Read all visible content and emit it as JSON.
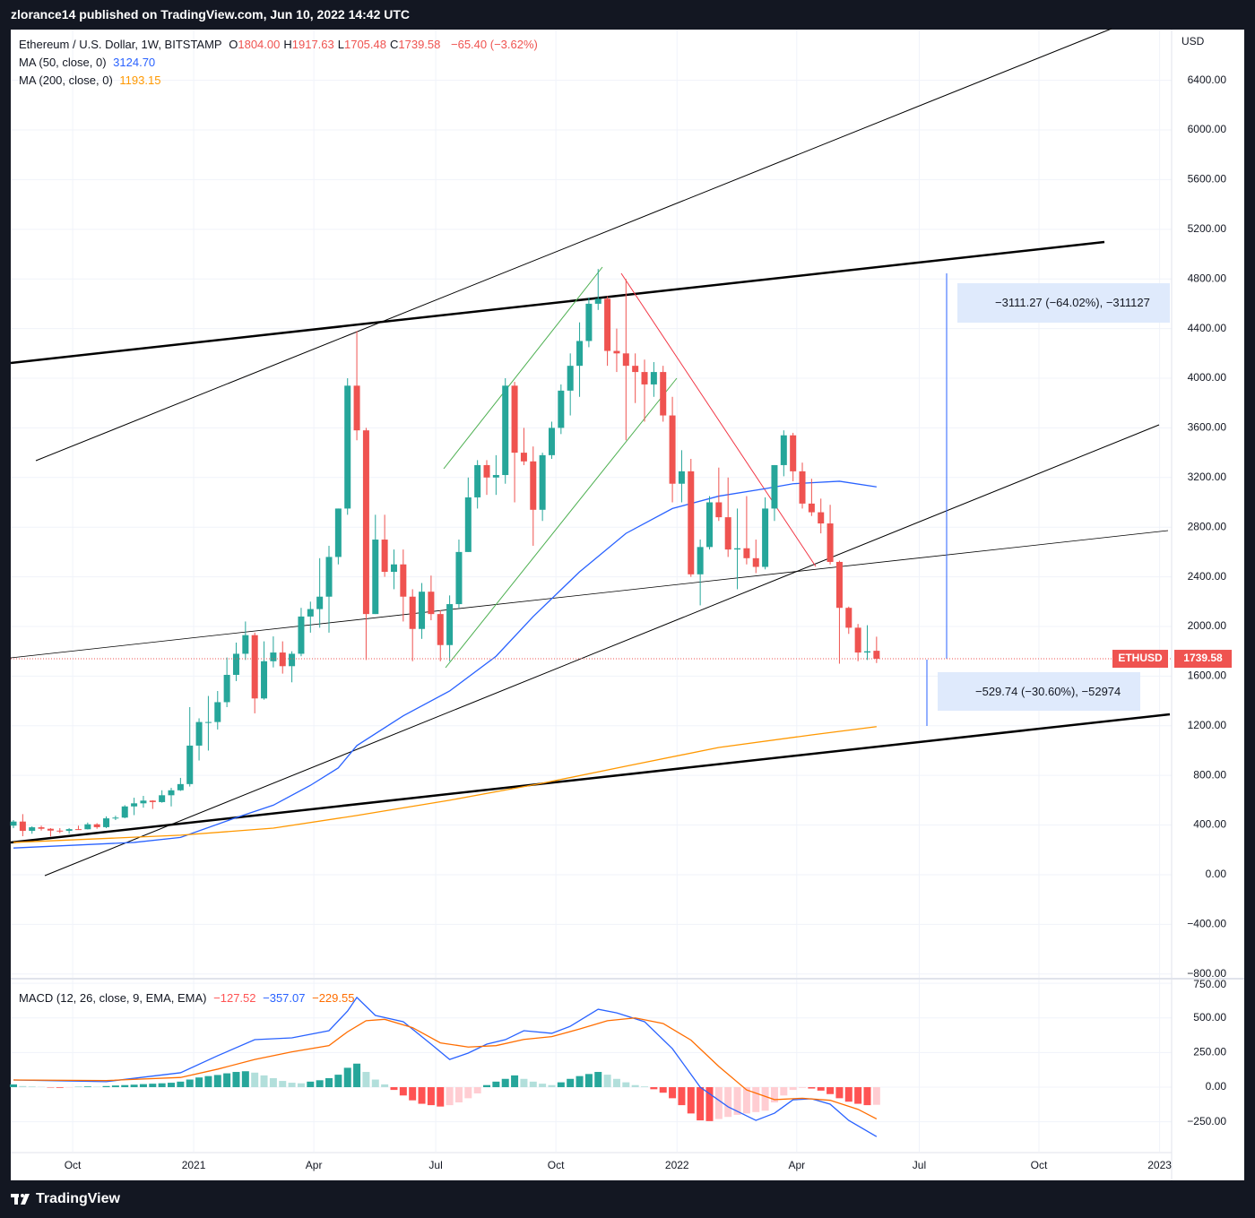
{
  "header": {
    "publisher": "zlorance14 published on TradingView.com, Jun 10, 2022 14:42 UTC"
  },
  "footer": {
    "brand": "TradingView"
  },
  "chart_data": [
    {
      "type": "candlestick",
      "legend": {
        "symbol": "Ethereum / U.S. Dollar, 1W, BITSTAMP",
        "ohlc": [
          {
            "label": "O",
            "value": "1804.00"
          },
          {
            "label": "H",
            "value": "1917.63"
          },
          {
            "label": "L",
            "value": "1705.48"
          },
          {
            "label": "C",
            "value": "1739.58"
          }
        ],
        "change": "−65.40 (−3.62%)"
      },
      "currency": "USD",
      "symbol_tag": "ETHUSD",
      "last_price_label": "1739.58",
      "up_color": "#26a69a",
      "down_color": "#ef5350",
      "categories": [
        null,
        null,
        null,
        null,
        null,
        null,
        null,
        null,
        null,
        null,
        null,
        null,
        null,
        null,
        null,
        null,
        null,
        null,
        null,
        null,
        null,
        null,
        null,
        null,
        null,
        null,
        null,
        null,
        null,
        null,
        null,
        null,
        null,
        null,
        null,
        null,
        null,
        null,
        null,
        null,
        null,
        null,
        null,
        null,
        null,
        null,
        null,
        null,
        null,
        null,
        null,
        null,
        null,
        null,
        null,
        null,
        null,
        null,
        null,
        null,
        null,
        null,
        null,
        null,
        null,
        null,
        null,
        null,
        null,
        null,
        null,
        null,
        null,
        null,
        null,
        null,
        null,
        null,
        null,
        null,
        null,
        null,
        null,
        null,
        null,
        null,
        null,
        null,
        null,
        null,
        null,
        null,
        null,
        null
      ],
      "open": [
        395,
        428,
        353,
        382,
        370,
        355,
        353,
        367,
        366,
        406,
        383,
        454,
        460,
        550,
        575,
        597,
        585,
        640,
        680,
        730,
        1040,
        1230,
        1230,
        1390,
        1610,
        1780,
        1930,
        1420,
        1720,
        1790,
        1680,
        1780,
        2080,
        2140,
        2240,
        2560,
        2950,
        3940,
        3580,
        2100,
        2700,
        2440,
        2500,
        2240,
        1980,
        2280,
        2100,
        1850,
        2180,
        2600,
        3040,
        3300,
        3200,
        3220,
        3940,
        3400,
        3330,
        2940,
        3380,
        3600,
        3900,
        4100,
        4300,
        4600,
        4640,
        4220,
        4200,
        4100,
        4050,
        3950,
        4050,
        3700,
        3150,
        3250,
        2420,
        2640,
        3000,
        2880,
        2620,
        2630,
        2550,
        2480,
        2950,
        3300,
        3540,
        3250,
        2990,
        2920,
        2830,
        2520,
        2150,
        1990,
        1790,
        1804
      ],
      "high": [
        440,
        488,
        390,
        395,
        375,
        375,
        375,
        395,
        420,
        415,
        470,
        475,
        560,
        620,
        635,
        600,
        680,
        700,
        780,
        1350,
        1260,
        1440,
        1480,
        1750,
        1870,
        2040,
        1950,
        1880,
        1920,
        1880,
        1800,
        2150,
        2200,
        2550,
        2650,
        2950,
        4000,
        4380,
        3600,
        2900,
        2900,
        2620,
        2620,
        2300,
        2350,
        2410,
        2130,
        2250,
        2700,
        3200,
        3340,
        3340,
        3380,
        4000,
        3970,
        3600,
        3450,
        3400,
        3650,
        3950,
        4200,
        4450,
        4650,
        4880,
        4660,
        4400,
        4800,
        4200,
        4150,
        4130,
        4100,
        3850,
        3420,
        3350,
        2700,
        3050,
        3280,
        3200,
        2950,
        3050,
        2700,
        3040,
        3300,
        3580,
        3560,
        3320,
        3190,
        3030,
        2980,
        2530,
        2160,
        2020,
        2010,
        1917.63
      ],
      "low": [
        375,
        310,
        330,
        355,
        308,
        335,
        330,
        362,
        364,
        370,
        375,
        440,
        455,
        480,
        540,
        530,
        580,
        550,
        675,
        710,
        920,
        1000,
        1170,
        1350,
        1560,
        1730,
        1300,
        1410,
        1670,
        1620,
        1550,
        1760,
        1950,
        1990,
        1950,
        2500,
        2900,
        3500,
        1730,
        2100,
        2400,
        2300,
        2040,
        1720,
        1900,
        2050,
        1720,
        1720,
        2150,
        2600,
        2950,
        3060,
        3060,
        3150,
        3000,
        3300,
        2650,
        2850,
        3350,
        3550,
        3700,
        3850,
        4250,
        4550,
        4100,
        4050,
        3500,
        3800,
        3650,
        3850,
        3650,
        3000,
        3000,
        2400,
        2170,
        2620,
        2850,
        2560,
        2300,
        2500,
        2430,
        2460,
        2850,
        3210,
        3170,
        2950,
        2890,
        2750,
        2500,
        1700,
        1940,
        1720,
        1730,
        1705.48
      ],
      "close": [
        428,
        353,
        382,
        370,
        355,
        353,
        367,
        366,
        406,
        383,
        454,
        460,
        550,
        575,
        597,
        585,
        640,
        680,
        730,
        1040,
        1230,
        1230,
        1390,
        1610,
        1780,
        1930,
        1420,
        1720,
        1790,
        1680,
        1780,
        2080,
        2140,
        2240,
        2560,
        2950,
        3940,
        3580,
        2100,
        2700,
        2440,
        2500,
        2240,
        1980,
        2280,
        2100,
        1850,
        2180,
        2600,
        3040,
        3300,
        3200,
        3220,
        3940,
        3400,
        3330,
        2940,
        3380,
        3600,
        3900,
        4100,
        4300,
        4600,
        4640,
        4220,
        4200,
        4100,
        4050,
        3950,
        4050,
        3700,
        3150,
        3250,
        2420,
        2640,
        3000,
        2880,
        2620,
        2630,
        2550,
        2480,
        2950,
        3300,
        3540,
        3250,
        2990,
        2920,
        2830,
        2520,
        2150,
        1990,
        1790,
        1800,
        1739.58
      ],
      "overlays": [
        {
          "name": "MA (50, close, 0)",
          "value_label": "3124.70",
          "color": "#2962ff",
          "x": [
            0,
            13,
            18,
            24,
            28,
            32,
            35,
            37,
            42,
            47,
            52,
            56,
            61,
            66,
            71,
            76,
            81,
            84,
            89,
            93
          ],
          "values": [
            215,
            260,
            300,
            460,
            560,
            720,
            860,
            1040,
            1280,
            1480,
            1760,
            2080,
            2440,
            2750,
            2950,
            3050,
            3110,
            3150,
            3170,
            3124.7
          ]
        },
        {
          "name": "MA (200, close, 0)",
          "value_label": "1193.15",
          "color": "#ff9800",
          "x": [
            0,
            18,
            28,
            37,
            47,
            57,
            66,
            76,
            86,
            93
          ],
          "values": [
            260,
            318,
            375,
            477,
            600,
            737,
            874,
            1025,
            1126,
            1193.15
          ]
        }
      ],
      "measurements": [
        "−3111.27 (−64.02%), −311127",
        "−529.74 (−30.60%), −52974"
      ],
      "xlim": [
        -0.29,
        124.6
      ],
      "xticks": [
        {
          "value": 6.38,
          "label": "Oct"
        },
        {
          "value": 19.42,
          "label": "2021"
        },
        {
          "value": 32.37,
          "label": "Apr"
        },
        {
          "value": 45.5,
          "label": "Jul"
        },
        {
          "value": 58.45,
          "label": "Oct"
        },
        {
          "value": 71.5,
          "label": "2022"
        },
        {
          "value": 84.4,
          "label": "Apr"
        },
        {
          "value": 97.6,
          "label": "Jul"
        },
        {
          "value": 110.5,
          "label": "Oct"
        },
        {
          "value": 123.5,
          "label": "2023"
        }
      ],
      "ylim": [
        -838,
        6809
      ],
      "yticks": [
        {
          "value": 6400,
          "label": "6400.00"
        },
        {
          "value": 6000,
          "label": "6000.00"
        },
        {
          "value": 5600,
          "label": "5600.00"
        },
        {
          "value": 5200,
          "label": "5200.00"
        },
        {
          "value": 4800,
          "label": "4800.00"
        },
        {
          "value": 4400,
          "label": "4400.00"
        },
        {
          "value": 4000,
          "label": "4000.00"
        },
        {
          "value": 3600,
          "label": "3600.00"
        },
        {
          "value": 3200,
          "label": "3200.00"
        },
        {
          "value": 2800,
          "label": "2800.00"
        },
        {
          "value": 2400,
          "label": "2400.00"
        },
        {
          "value": 2000,
          "label": "2000.00"
        },
        {
          "value": 1600,
          "label": "1600.00"
        },
        {
          "value": 1200,
          "label": "1200.00"
        },
        {
          "value": 800,
          "label": "800.00"
        },
        {
          "value": 400,
          "label": "400.00"
        },
        {
          "value": 0,
          "label": "0.00"
        },
        {
          "value": -400,
          "label": "−400.00"
        },
        {
          "value": -800,
          "label": "−800.00"
        }
      ],
      "grid": true
    },
    {
      "type": "macd",
      "legend": {
        "title": "MACD (12, 26, close, 9, EMA, EMA)"
      },
      "histogram": {
        "value_label": "−127.52",
        "colors": [
          "#26a69a",
          "#b2dfdb",
          "#ffcdd2",
          "#ff5252"
        ],
        "values": [
          20,
          8,
          5,
          2,
          -3,
          -5,
          -3,
          2,
          5,
          3,
          8,
          12,
          15,
          18,
          22,
          25,
          28,
          32,
          40,
          55,
          70,
          80,
          88,
          100,
          110,
          115,
          105,
          85,
          65,
          45,
          32,
          28,
          40,
          50,
          65,
          90,
          140,
          170,
          110,
          55,
          20,
          -20,
          -60,
          -95,
          -120,
          -130,
          -140,
          -130,
          -110,
          -80,
          -45,
          15,
          40,
          60,
          85,
          60,
          40,
          25,
          15,
          35,
          60,
          80,
          95,
          110,
          90,
          60,
          35,
          15,
          5,
          -15,
          -40,
          -80,
          -130,
          -190,
          -240,
          -245,
          -230,
          -215,
          -200,
          -190,
          -180,
          -170,
          -110,
          -60,
          -20,
          -5,
          -10,
          -25,
          -50,
          -80,
          -105,
          -120,
          -130,
          -127.52
        ]
      },
      "series": [
        {
          "color": "#2962ff",
          "value_label": "−357.07",
          "x": [
            0,
            10,
            18,
            22,
            26,
            30,
            34,
            36,
            37,
            39,
            42,
            45,
            47,
            49,
            51,
            53,
            55,
            58,
            60,
            63,
            65,
            68,
            71,
            74,
            77,
            80,
            82,
            84,
            86,
            88,
            90,
            93
          ],
          "values": [
            52,
            40,
            104,
            227,
            343,
            356,
            408,
            550,
            648,
            518,
            473,
            311,
            200,
            246,
            311,
            343,
            408,
            389,
            440,
            563,
            537,
            473,
            278,
            0,
            -142,
            -240,
            -188,
            -91,
            -84,
            -123,
            -240,
            -357.07
          ]
        },
        {
          "color": "#ff6d00",
          "value_label": "−229.55",
          "x": [
            0,
            10,
            18,
            22,
            26,
            30,
            34,
            36,
            38,
            40,
            43,
            46,
            49,
            52,
            55,
            58,
            61,
            64,
            67,
            70,
            73,
            76,
            79,
            82,
            85,
            88,
            91,
            93
          ],
          "values": [
            52,
            48,
            70,
            130,
            200,
            255,
            300,
            400,
            480,
            490,
            430,
            320,
            290,
            300,
            345,
            365,
            420,
            480,
            500,
            460,
            340,
            150,
            -20,
            -90,
            -80,
            -95,
            -160,
            -229.55
          ]
        }
      ],
      "ylim": [
        -466,
        777
      ],
      "yticks": [
        {
          "value": 750,
          "label": "750.00"
        },
        {
          "value": 500,
          "label": "500.00"
        },
        {
          "value": 250,
          "label": "250.00"
        },
        {
          "value": 0,
          "label": "0.00"
        },
        {
          "value": -250,
          "label": "−250.00"
        }
      ],
      "grid": true
    }
  ]
}
